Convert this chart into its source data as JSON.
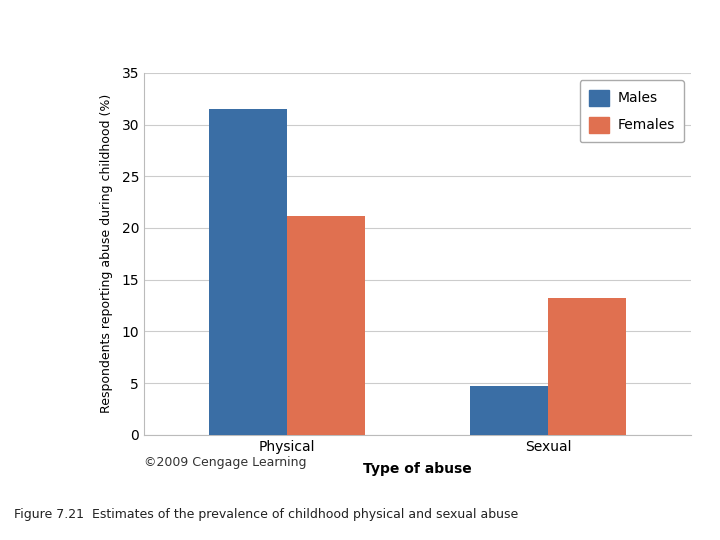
{
  "categories": [
    "Physical",
    "Sexual"
  ],
  "males": [
    31.5,
    4.7
  ],
  "females": [
    21.2,
    13.2
  ],
  "male_color": "#3A6EA5",
  "female_color": "#E07050",
  "ylabel": "Respondents reporting abuse during childhood (%)",
  "xlabel": "Type of abuse",
  "ylim": [
    0,
    35
  ],
  "yticks": [
    0,
    5,
    10,
    15,
    20,
    25,
    30,
    35
  ],
  "bar_width": 0.3,
  "legend_labels": [
    "Males",
    "Females"
  ],
  "copyright_text": "©2009 Cengage Learning",
  "caption": "Figure 7.21  Estimates of the prevalence of childhood physical and sexual abuse",
  "background_color": "#ffffff",
  "plot_bg_color": "#ffffff",
  "grid_color": "#cccccc",
  "ylabel_fontsize": 9,
  "xlabel_fontsize": 10,
  "tick_fontsize": 10,
  "legend_fontsize": 10
}
